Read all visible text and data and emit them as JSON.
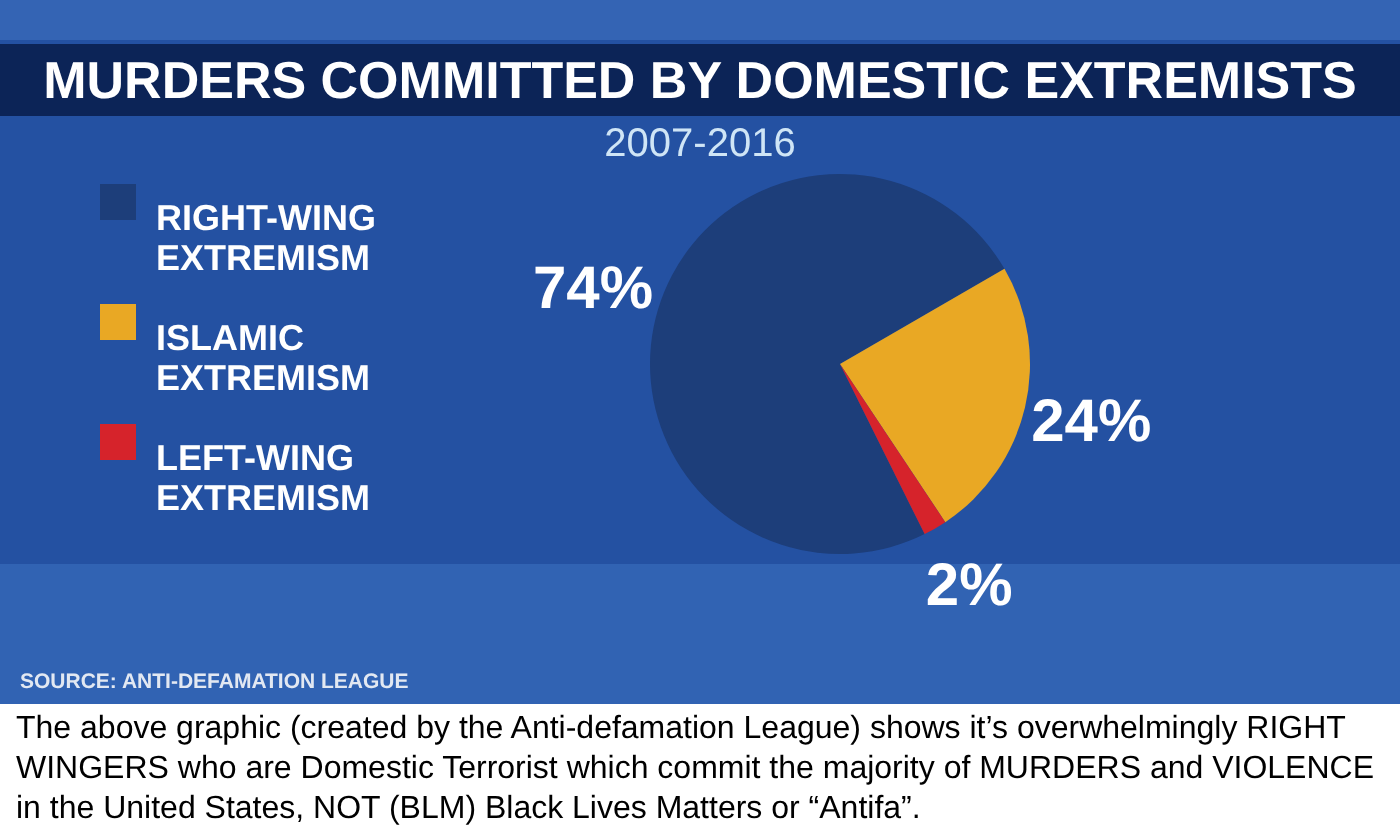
{
  "chart_data": {
    "type": "pie",
    "title": "MURDERS COMMITTED BY DOMESTIC EXTREMISTS",
    "subtitle": "2007-2016",
    "categories": [
      "RIGHT-WING EXTREMISM",
      "ISLAMIC EXTREMISM",
      "LEFT-WING EXTREMISM"
    ],
    "values": [
      74,
      24,
      2
    ],
    "colors": [
      "#1d3e7a",
      "#e9a824",
      "#d6232b"
    ],
    "value_labels": [
      "74%",
      "24%",
      "2%"
    ],
    "legend": "left",
    "annotations": [
      "SOURCE: ANTI-DEFAMATION LEAGUE",
      "The above graphic (created by the Anti-defamation League) shows it’s overwhelmingly RIGHT WINGERS who are Domestic Terrorist which commit the majority of MURDERS and VIOLENCE in the United States, NOT (BLM) Black Lives Matters or “Antifa”."
    ]
  }
}
